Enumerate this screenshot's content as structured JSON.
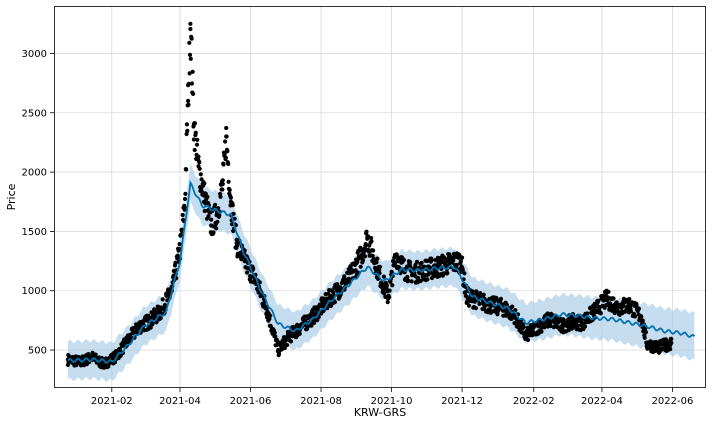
{
  "chart_data": {
    "type": "line",
    "title": "",
    "xlabel": "KRW-GRS",
    "ylabel": "Price",
    "x_range": [
      "2020-12-13",
      "2022-06-30"
    ],
    "y_range": [
      180,
      3400
    ],
    "x_ticks": [
      {
        "date": "2021-02-01",
        "label": "2021-02"
      },
      {
        "date": "2021-04-01",
        "label": "2021-04"
      },
      {
        "date": "2021-06-01",
        "label": "2021-06"
      },
      {
        "date": "2021-08-01",
        "label": "2021-08"
      },
      {
        "date": "2021-10-01",
        "label": "2021-10"
      },
      {
        "date": "2021-12-01",
        "label": "2021-12"
      },
      {
        "date": "2022-02-01",
        "label": "2022-02"
      },
      {
        "date": "2022-04-01",
        "label": "2022-04"
      },
      {
        "date": "2022-06-01",
        "label": "2022-06"
      }
    ],
    "y_ticks": [
      500,
      1000,
      1500,
      2000,
      2500,
      3000
    ],
    "grid": true,
    "colors": {
      "forecast_line": "#0072B2",
      "interval_band": "#a6cbe7",
      "observations": "#000000"
    },
    "series": [
      {
        "role": "observed",
        "points": [
          {
            "x": "2020-12-25",
            "y": 420
          },
          {
            "x": "2021-01-05",
            "y": 400
          },
          {
            "x": "2021-01-15",
            "y": 440
          },
          {
            "x": "2021-01-25",
            "y": 380
          },
          {
            "x": "2021-02-05",
            "y": 450
          },
          {
            "x": "2021-02-15",
            "y": 580
          },
          {
            "x": "2021-02-25",
            "y": 700
          },
          {
            "x": "2021-03-05",
            "y": 740
          },
          {
            "x": "2021-03-15",
            "y": 820
          },
          {
            "x": "2021-03-25",
            "y": 1000
          },
          {
            "x": "2021-04-01",
            "y": 1350
          },
          {
            "x": "2021-04-05",
            "y": 1700
          },
          {
            "x": "2021-04-08",
            "y": 2600
          },
          {
            "x": "2021-04-10",
            "y": 3250
          },
          {
            "x": "2021-04-13",
            "y": 2400
          },
          {
            "x": "2021-04-17",
            "y": 2050
          },
          {
            "x": "2021-04-22",
            "y": 1800
          },
          {
            "x": "2021-04-28",
            "y": 1550
          },
          {
            "x": "2021-05-03",
            "y": 1650
          },
          {
            "x": "2021-05-08",
            "y": 1900
          },
          {
            "x": "2021-05-11",
            "y": 2300
          },
          {
            "x": "2021-05-15",
            "y": 1750
          },
          {
            "x": "2021-05-20",
            "y": 1400
          },
          {
            "x": "2021-05-27",
            "y": 1250
          },
          {
            "x": "2021-06-05",
            "y": 1100
          },
          {
            "x": "2021-06-15",
            "y": 850
          },
          {
            "x": "2021-06-25",
            "y": 500
          },
          {
            "x": "2021-07-05",
            "y": 620
          },
          {
            "x": "2021-07-15",
            "y": 700
          },
          {
            "x": "2021-07-25",
            "y": 780
          },
          {
            "x": "2021-08-05",
            "y": 900
          },
          {
            "x": "2021-08-15",
            "y": 1000
          },
          {
            "x": "2021-08-25",
            "y": 1100
          },
          {
            "x": "2021-09-05",
            "y": 1300
          },
          {
            "x": "2021-09-10",
            "y": 1450
          },
          {
            "x": "2021-09-20",
            "y": 1150
          },
          {
            "x": "2021-09-28",
            "y": 950
          },
          {
            "x": "2021-10-05",
            "y": 1300
          },
          {
            "x": "2021-10-12",
            "y": 1180
          },
          {
            "x": "2021-10-20",
            "y": 1150
          },
          {
            "x": "2021-11-01",
            "y": 1180
          },
          {
            "x": "2021-11-10",
            "y": 1200
          },
          {
            "x": "2021-11-20",
            "y": 1230
          },
          {
            "x": "2021-11-30",
            "y": 1250
          },
          {
            "x": "2021-12-05",
            "y": 950
          },
          {
            "x": "2021-12-15",
            "y": 920
          },
          {
            "x": "2021-12-25",
            "y": 880
          },
          {
            "x": "2022-01-05",
            "y": 860
          },
          {
            "x": "2022-01-15",
            "y": 800
          },
          {
            "x": "2022-01-25",
            "y": 620
          },
          {
            "x": "2022-02-05",
            "y": 700
          },
          {
            "x": "2022-02-15",
            "y": 760
          },
          {
            "x": "2022-02-25",
            "y": 700
          },
          {
            "x": "2022-03-05",
            "y": 740
          },
          {
            "x": "2022-03-15",
            "y": 730
          },
          {
            "x": "2022-03-25",
            "y": 820
          },
          {
            "x": "2022-04-05",
            "y": 930
          },
          {
            "x": "2022-04-15",
            "y": 860
          },
          {
            "x": "2022-04-25",
            "y": 880
          },
          {
            "x": "2022-05-05",
            "y": 780
          },
          {
            "x": "2022-05-10",
            "y": 550
          },
          {
            "x": "2022-05-20",
            "y": 520
          },
          {
            "x": "2022-05-31",
            "y": 560
          }
        ]
      },
      {
        "role": "forecast",
        "points": [
          {
            "x": "2020-12-25",
            "y": 410
          },
          {
            "x": "2021-01-15",
            "y": 420
          },
          {
            "x": "2021-02-01",
            "y": 400
          },
          {
            "x": "2021-02-15",
            "y": 540
          },
          {
            "x": "2021-03-01",
            "y": 700
          },
          {
            "x": "2021-03-20",
            "y": 820
          },
          {
            "x": "2021-04-01",
            "y": 1250
          },
          {
            "x": "2021-04-10",
            "y": 1900
          },
          {
            "x": "2021-04-20",
            "y": 1720
          },
          {
            "x": "2021-05-01",
            "y": 1680
          },
          {
            "x": "2021-05-15",
            "y": 1640
          },
          {
            "x": "2021-05-25",
            "y": 1350
          },
          {
            "x": "2021-06-10",
            "y": 1000
          },
          {
            "x": "2021-06-25",
            "y": 720
          },
          {
            "x": "2021-07-10",
            "y": 660
          },
          {
            "x": "2021-07-25",
            "y": 760
          },
          {
            "x": "2021-08-10",
            "y": 920
          },
          {
            "x": "2021-08-25",
            "y": 1050
          },
          {
            "x": "2021-09-10",
            "y": 1200
          },
          {
            "x": "2021-09-25",
            "y": 1080
          },
          {
            "x": "2021-10-10",
            "y": 1180
          },
          {
            "x": "2021-10-25",
            "y": 1170
          },
          {
            "x": "2021-11-10",
            "y": 1190
          },
          {
            "x": "2021-11-25",
            "y": 1200
          },
          {
            "x": "2021-12-10",
            "y": 950
          },
          {
            "x": "2021-12-25",
            "y": 900
          },
          {
            "x": "2022-01-10",
            "y": 850
          },
          {
            "x": "2022-01-25",
            "y": 730
          },
          {
            "x": "2022-02-10",
            "y": 760
          },
          {
            "x": "2022-02-25",
            "y": 800
          },
          {
            "x": "2022-03-10",
            "y": 790
          },
          {
            "x": "2022-03-25",
            "y": 770
          },
          {
            "x": "2022-04-10",
            "y": 760
          },
          {
            "x": "2022-04-25",
            "y": 730
          },
          {
            "x": "2022-05-10",
            "y": 700
          },
          {
            "x": "2022-05-25",
            "y": 660
          },
          {
            "x": "2022-06-10",
            "y": 640
          },
          {
            "x": "2022-06-20",
            "y": 610
          }
        ],
        "band_halfwidth": [
          {
            "x": "2020-12-25",
            "v": 160
          },
          {
            "x": "2021-12-31",
            "v": 160
          },
          {
            "x": "2022-03-01",
            "v": 170
          },
          {
            "x": "2022-04-15",
            "v": 180
          },
          {
            "x": "2022-06-20",
            "v": 200
          }
        ]
      }
    ]
  }
}
